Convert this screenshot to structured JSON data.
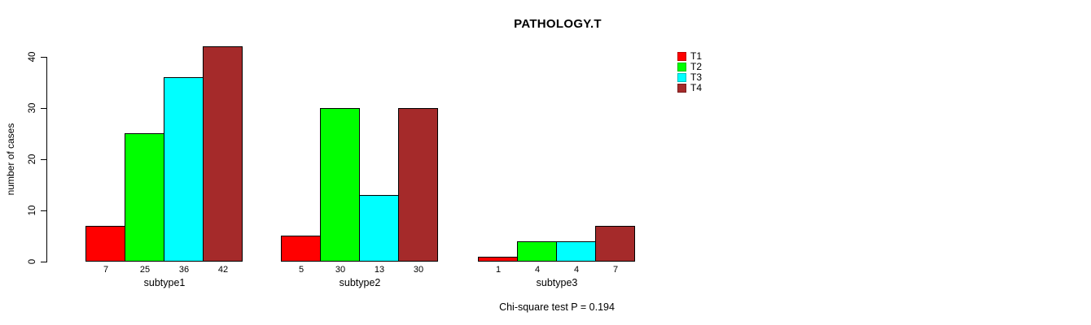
{
  "title": "PATHOLOGY.T",
  "footnote": "Chi-square test P = 0.194",
  "chart_data": {
    "type": "bar",
    "grouped": true,
    "title": "PATHOLOGY.T",
    "ylabel": "number of cases",
    "xlabel": "",
    "categories": [
      "subtype1",
      "subtype2",
      "subtype3"
    ],
    "series": [
      {
        "name": "T1",
        "color": "#FF0000",
        "values": [
          7,
          5,
          1
        ]
      },
      {
        "name": "T2",
        "color": "#00FF00",
        "values": [
          25,
          30,
          4
        ]
      },
      {
        "name": "T3",
        "color": "#00FFFF",
        "values": [
          36,
          13,
          4
        ]
      },
      {
        "name": "T4",
        "color": "#A52A2A",
        "values": [
          42,
          30,
          7
        ]
      }
    ],
    "value_labels_shown": true,
    "value_labels": [
      [
        7,
        25,
        36,
        42
      ],
      [
        5,
        30,
        13,
        30
      ],
      [
        1,
        4,
        4,
        7
      ]
    ],
    "yticks": [
      0,
      10,
      20,
      30,
      40
    ],
    "ylim": [
      0,
      42
    ],
    "grid": false,
    "legend_position": "top-right",
    "legend_entries": [
      "T1",
      "T2",
      "T3",
      "T4"
    ],
    "annotation": "Chi-square test P = 0.194",
    "bar_border_color": "#000000",
    "background_color": "#FFFFFF"
  }
}
